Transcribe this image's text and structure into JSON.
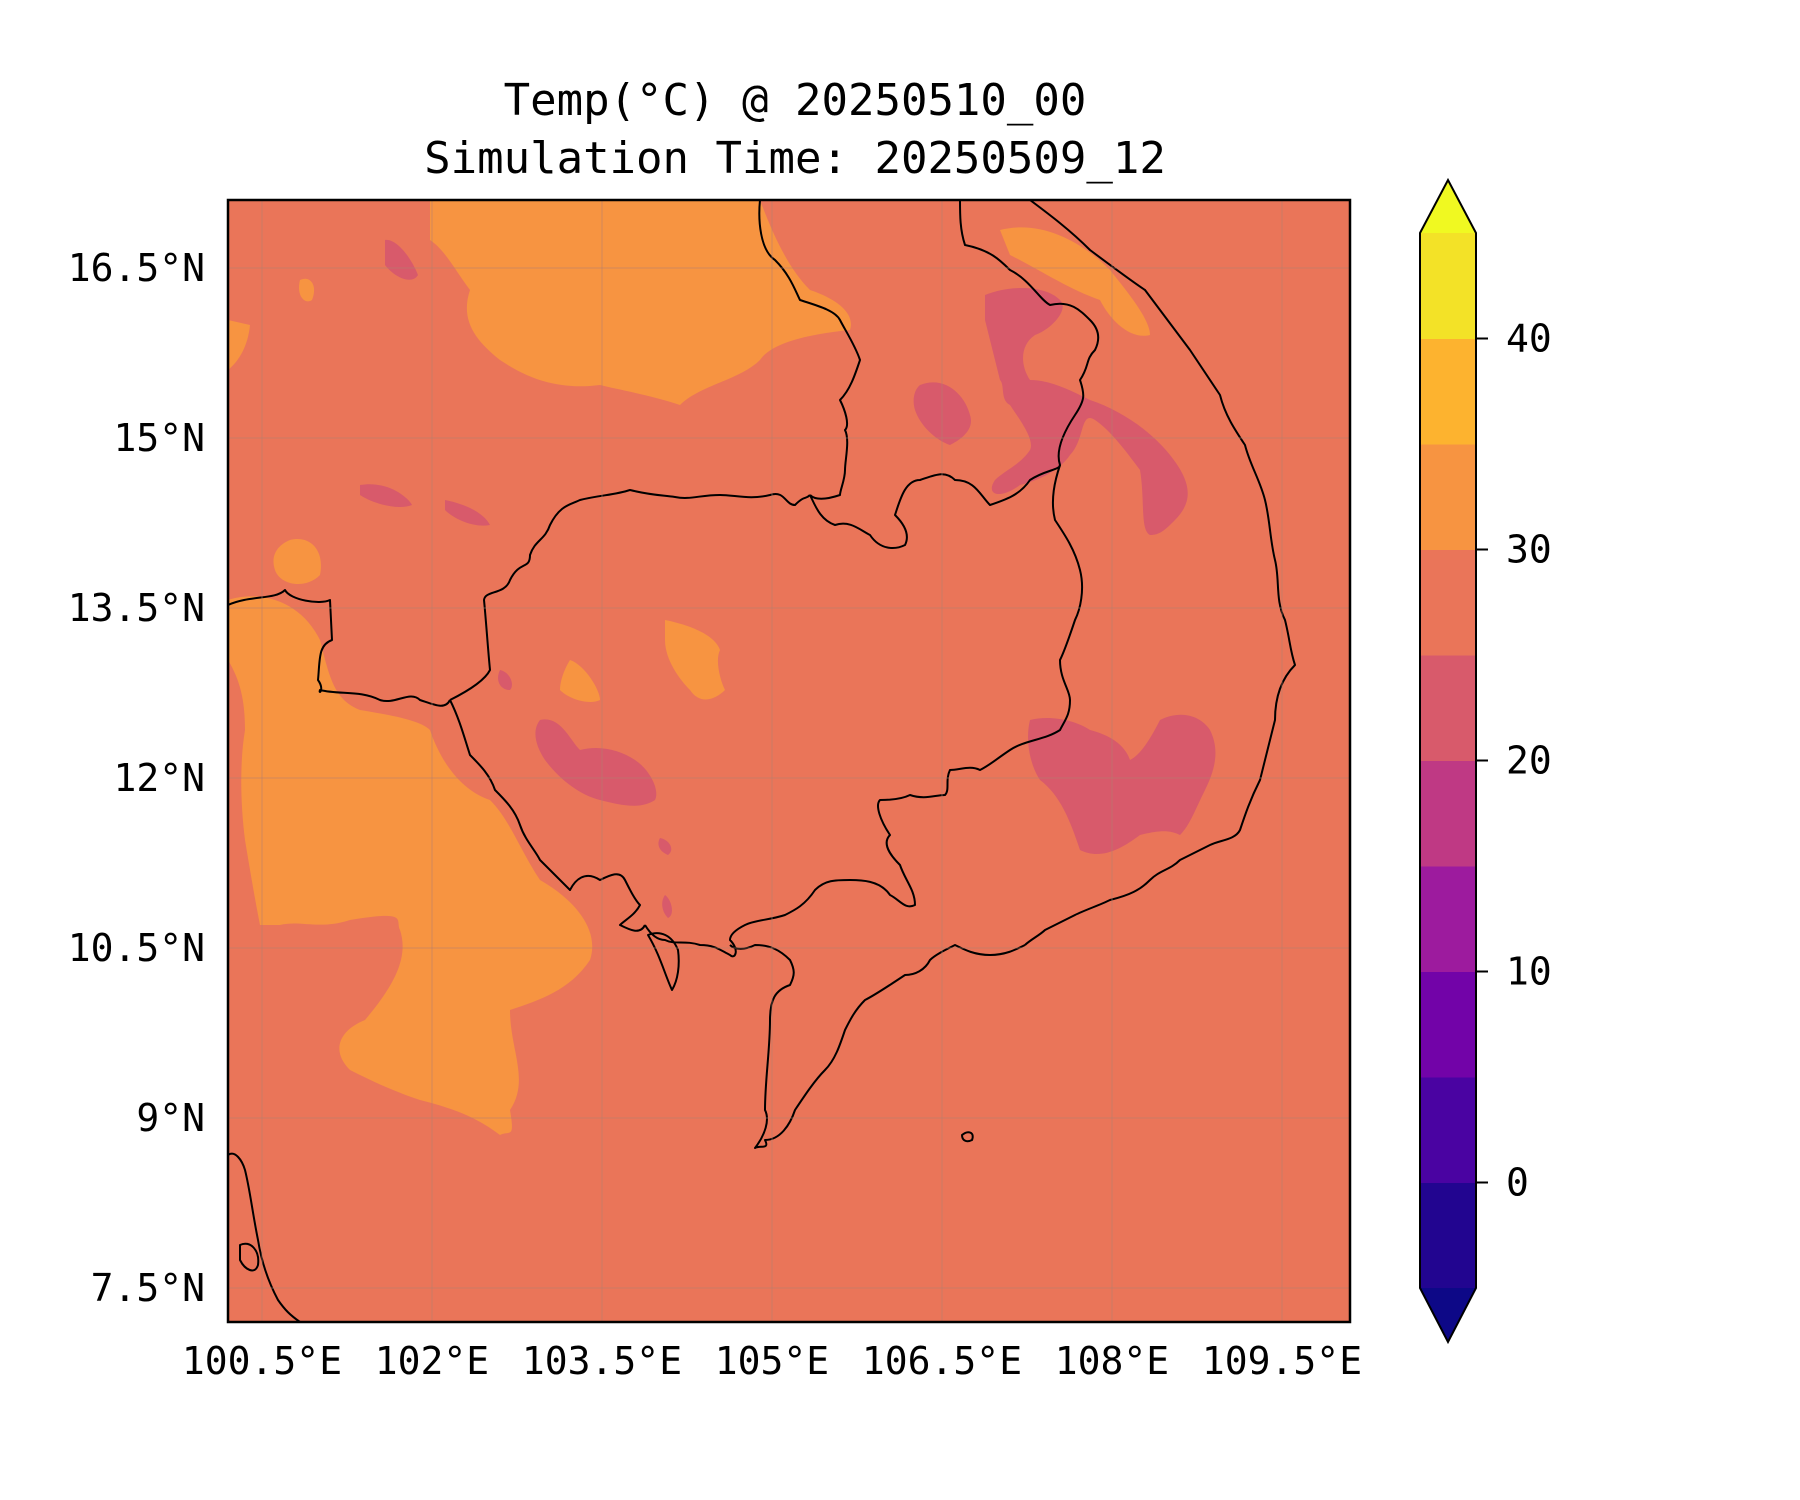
{
  "title": {
    "line1": "Temp(°C) @ 20250510_00",
    "line2": "Simulation Time: 20250509_12"
  },
  "map": {
    "variable": "Temp(°C)",
    "background_color": "#ea7559",
    "extent": {
      "lon": [
        100.2,
        110.1
      ],
      "lat": [
        7.2,
        17.1
      ]
    },
    "gridlines": true,
    "lon_ticks": [
      {
        "value": 100.5,
        "label": "100.5°E"
      },
      {
        "value": 102.0,
        "label": "102°E"
      },
      {
        "value": 103.5,
        "label": "103.5°E"
      },
      {
        "value": 105.0,
        "label": "105°E"
      },
      {
        "value": 106.5,
        "label": "106.5°E"
      },
      {
        "value": 108.0,
        "label": "108°E"
      },
      {
        "value": 109.5,
        "label": "109.5°E"
      }
    ],
    "lat_ticks": [
      {
        "value": 16.5,
        "label": "16.5°N"
      },
      {
        "value": 15.0,
        "label": "15°N"
      },
      {
        "value": 13.5,
        "label": "13.5°N"
      },
      {
        "value": 12.0,
        "label": "12°N"
      },
      {
        "value": 10.5,
        "label": "10.5°N"
      },
      {
        "value": 9.0,
        "label": "9°N"
      },
      {
        "value": 7.5,
        "label": "7.5°N"
      }
    ]
  },
  "colorbar": {
    "min": -5,
    "max": 45,
    "extend": "both",
    "levels": [
      -5,
      0,
      5,
      10,
      15,
      20,
      25,
      30,
      35,
      40,
      45
    ],
    "colors": [
      "#220590",
      "#4a03a2",
      "#7203a8",
      "#9d1b9e",
      "#bf3984",
      "#d85a6b",
      "#ea7559",
      "#f79441",
      "#fdb32f",
      "#f3e227"
    ],
    "under_color": "#0d0887",
    "over_color": "#f0f921",
    "tick_labels": [
      {
        "value": 0,
        "label": "0"
      },
      {
        "value": 10,
        "label": "10"
      },
      {
        "value": 20,
        "label": "20"
      },
      {
        "value": 30,
        "label": "30"
      },
      {
        "value": 40,
        "label": "40"
      }
    ]
  }
}
